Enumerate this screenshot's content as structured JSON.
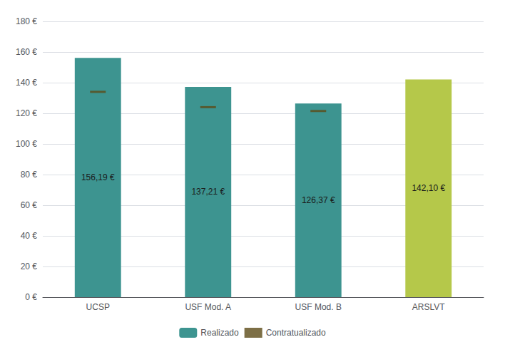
{
  "chart_data": {
    "type": "bar",
    "categories": [
      "UCSP",
      "USF Mod. A",
      "USF Mod. B",
      "ARSLVT"
    ],
    "series": [
      {
        "name": "Realizado",
        "type": "bar",
        "values": [
          156.19,
          137.21,
          126.37,
          142.1
        ],
        "value_labels": [
          "156,19 €",
          "137,21 €",
          "126,37 €",
          "142,10 €"
        ],
        "colors": [
          "#3d9490",
          "#3d9490",
          "#3d9490",
          "#b5c84a"
        ]
      },
      {
        "name": "Contratualizado",
        "type": "scatter",
        "marker": "dash",
        "color": "#5c4b18",
        "values": [
          134.0,
          124.0,
          121.5,
          null
        ]
      }
    ],
    "ylim": [
      0,
      180
    ],
    "yticks": [
      {
        "value": 0,
        "label": "0 €"
      },
      {
        "value": 20,
        "label": "20 €"
      },
      {
        "value": 40,
        "label": "40 €"
      },
      {
        "value": 60,
        "label": "60 €"
      },
      {
        "value": 80,
        "label": "80 €"
      },
      {
        "value": 100,
        "label": "100 €"
      },
      {
        "value": 120,
        "label": "120 €"
      },
      {
        "value": 140,
        "label": "140 €"
      },
      {
        "value": 160,
        "label": "160 €"
      },
      {
        "value": 180,
        "label": "180 €"
      }
    ],
    "grid": true,
    "legend": "bottom",
    "data_labels": true
  }
}
